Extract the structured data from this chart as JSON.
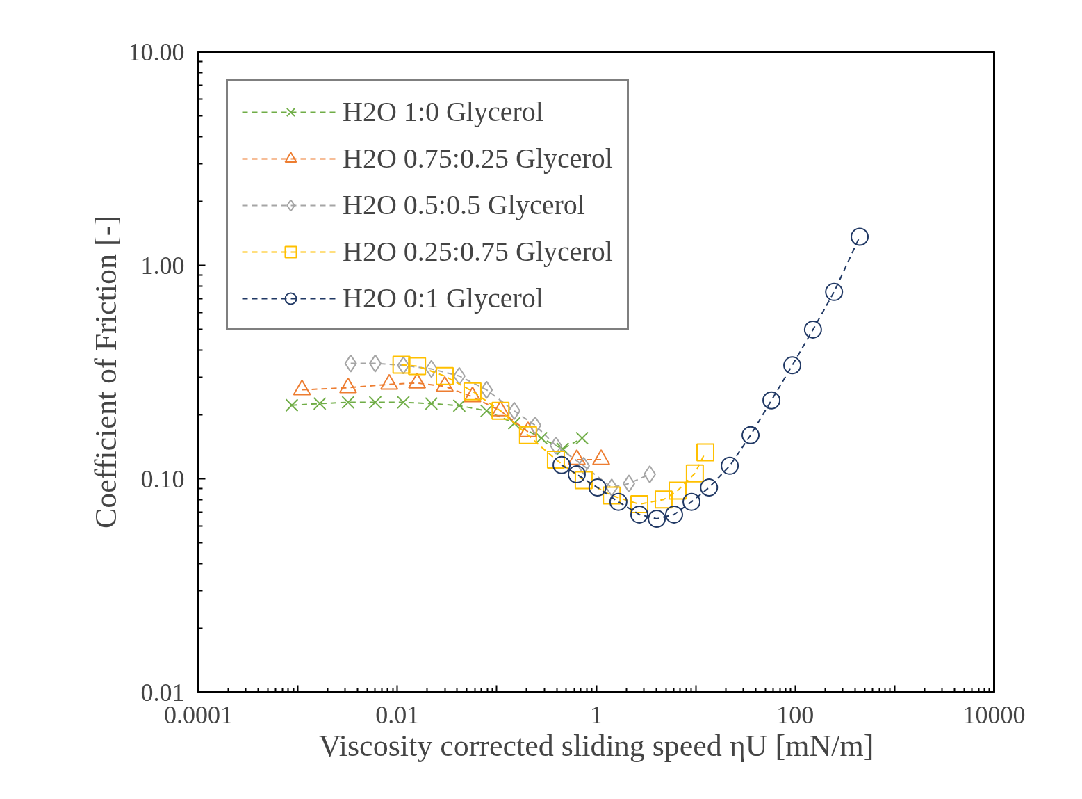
{
  "chart_data": {
    "type": "line",
    "xlabel": "Viscosity corrected sliding speed ηU [mN/m]",
    "ylabel": "Coefficient of Friction [-]",
    "log": "xy",
    "xlim": [
      0.0001,
      10000
    ],
    "ylim": [
      0.01,
      10
    ],
    "xticks": [
      0.0001,
      {
        "value": 0.001,
        "label": null
      },
      0.01,
      {
        "value": 0.1,
        "label": null
      },
      1,
      {
        "value": 10,
        "label": null
      },
      100,
      {
        "value": 1000,
        "label": null
      },
      10000
    ],
    "yticks": [
      {
        "value": 0.01,
        "label": "0.01"
      },
      {
        "value": 0.1,
        "label": "0.10"
      },
      {
        "value": 1,
        "label": "1.00"
      },
      {
        "value": 10,
        "label": "10.00"
      }
    ],
    "grid": false,
    "legend": "top left",
    "line_style": "dashed",
    "series": [
      {
        "name": "H2O 1:0 Glycerol",
        "color": "#70ad47",
        "marker": "cross",
        "x": [
          0.00087,
          0.00166,
          0.0032,
          0.006,
          0.0115,
          0.022,
          0.042,
          0.079,
          0.15,
          0.28,
          0.46,
          0.72
        ],
        "values": [
          0.221,
          0.225,
          0.228,
          0.228,
          0.228,
          0.225,
          0.22,
          0.208,
          0.182,
          0.155,
          0.138,
          0.155
        ]
      },
      {
        "name": "H2O 0.75:0.25 Glycerol",
        "color": "#ed7d31",
        "marker": "triangle",
        "x": [
          0.0011,
          0.0032,
          0.0083,
          0.0158,
          0.03,
          0.057,
          0.109,
          0.206,
          0.393,
          0.637,
          1.12
        ],
        "values": [
          0.261,
          0.267,
          0.277,
          0.281,
          0.271,
          0.242,
          0.208,
          0.166,
          null,
          0.123,
          0.123
        ]
      },
      {
        "name": "H2O 0.5:0.5 Glycerol",
        "color": "#a5a5a5",
        "marker": "diamond",
        "x": [
          0.0034,
          0.006,
          0.0115,
          0.022,
          0.042,
          0.079,
          0.15,
          0.243,
          0.393,
          0.748,
          1.43,
          2.13,
          3.45
        ],
        "values": [
          0.347,
          0.347,
          0.34,
          0.327,
          0.303,
          0.261,
          0.208,
          0.178,
          0.143,
          0.115,
          0.091,
          0.095,
          0.105
        ]
      },
      {
        "name": "H2O 0.25:0.75 Glycerol",
        "color": "#ffc000",
        "marker": "square",
        "x": [
          0.011,
          0.0158,
          0.03,
          0.057,
          0.109,
          0.206,
          0.393,
          0.748,
          1.43,
          2.71,
          4.76,
          6.57,
          9.8,
          12.5
        ],
        "values": [
          0.342,
          0.337,
          0.303,
          0.257,
          0.208,
          0.16,
          0.123,
          0.0985,
          0.0835,
          0.076,
          0.08,
          0.088,
          0.106,
          0.133
        ]
      },
      {
        "name": "H2O 0:1 Glycerol",
        "color": "#203864",
        "marker": "circle",
        "x": [
          0.448,
          0.637,
          1.03,
          1.67,
          2.71,
          4.06,
          6.06,
          9.07,
          13.6,
          22,
          35.6,
          57.7,
          93.5,
          151,
          246,
          445
        ],
        "values": [
          0.116,
          0.105,
          0.091,
          0.078,
          0.068,
          0.065,
          0.068,
          0.078,
          0.091,
          0.115,
          0.16,
          0.233,
          0.34,
          0.5,
          0.75,
          1.36
        ]
      }
    ]
  }
}
